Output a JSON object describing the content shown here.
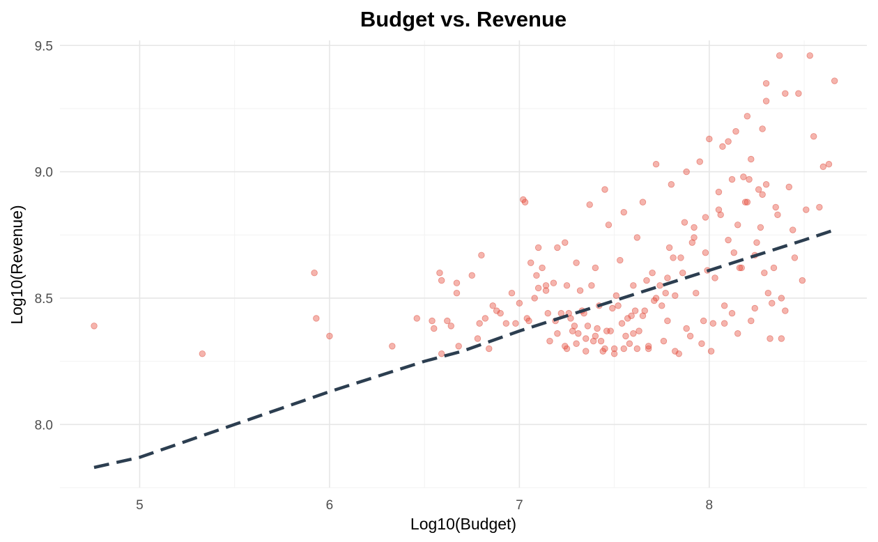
{
  "chart_data": {
    "type": "scatter",
    "title": "Budget vs. Revenue",
    "xlabel": "Log10(Budget)",
    "ylabel": "Log10(Revenue)",
    "xlim": [
      4.58,
      8.83
    ],
    "ylim": [
      7.75,
      9.52
    ],
    "x_ticks": [
      5,
      6,
      7,
      8
    ],
    "y_ticks": [
      8.0,
      8.5,
      9.0,
      9.5
    ],
    "x_tick_labels": [
      "5",
      "6",
      "7",
      "8"
    ],
    "y_tick_labels": [
      "8.0",
      "8.5",
      "9.0",
      "9.5"
    ],
    "grid": true,
    "legend": false,
    "point_color": "#e74c3c",
    "trend_color": "#2c3e50",
    "trend_line": {
      "style": "dashed",
      "x": [
        4.76,
        5.0,
        5.5,
        6.0,
        6.5,
        6.7,
        7.0,
        7.5,
        8.0,
        8.5,
        8.66
      ],
      "y": [
        7.83,
        7.87,
        8.0,
        8.13,
        8.25,
        8.29,
        8.37,
        8.49,
        8.61,
        8.73,
        8.77
      ]
    },
    "series": [
      {
        "x": [
          4.76,
          5.33,
          5.92,
          5.93,
          6.0,
          6.33,
          6.46,
          6.54,
          6.55,
          6.58,
          6.59,
          6.59,
          6.62,
          6.64,
          6.67,
          6.67,
          6.68,
          6.75,
          6.78,
          6.79,
          6.8,
          6.82,
          6.84,
          6.86,
          6.88,
          6.9,
          6.93,
          6.96,
          6.98,
          7.0,
          7.02,
          7.03,
          7.04,
          7.06,
          7.08,
          7.1,
          7.12,
          7.14,
          7.16,
          7.18,
          7.2,
          7.22,
          7.24,
          7.25,
          7.27,
          7.28,
          7.3,
          7.32,
          7.33,
          7.35,
          7.37,
          7.38,
          7.4,
          7.41,
          7.43,
          7.45,
          7.47,
          7.49,
          7.5,
          7.53,
          7.55,
          7.57,
          7.58,
          7.6,
          7.62,
          7.63,
          7.65,
          7.66,
          7.68,
          7.7,
          7.72,
          7.74,
          7.76,
          7.78,
          7.79,
          7.8,
          7.82,
          7.84,
          7.86,
          7.88,
          7.9,
          7.92,
          7.93,
          7.95,
          7.97,
          7.98,
          8.0,
          8.01,
          8.03,
          8.05,
          8.07,
          8.08,
          8.1,
          8.12,
          8.14,
          8.15,
          8.17,
          8.19,
          8.2,
          8.22,
          8.24,
          8.26,
          8.28,
          8.3,
          8.3,
          8.32,
          8.34,
          8.36,
          8.37,
          8.38,
          8.4,
          8.42,
          8.44,
          8.45,
          8.47,
          8.49,
          8.51,
          8.53,
          8.55,
          8.58,
          8.6,
          8.63,
          8.66,
          8.3,
          8.35,
          8.28,
          8.22,
          8.15,
          8.1,
          8.18,
          8.25,
          8.29,
          8.33,
          8.2,
          8.12,
          8.05,
          7.98,
          7.92,
          7.85,
          7.78,
          7.72,
          7.65,
          7.6,
          7.55,
          7.5,
          7.45,
          7.4,
          7.35,
          7.3,
          7.25,
          7.2,
          7.15,
          7.1,
          7.05,
          8.08,
          8.16,
          8.24,
          8.31,
          8.38,
          8.4,
          8.02,
          7.96,
          7.88,
          7.82,
          7.75,
          7.68,
          7.62,
          7.56,
          7.52,
          7.48,
          7.44,
          7.39,
          7.34,
          7.29,
          7.24,
          7.19,
          7.14,
          7.09,
          8.27,
          8.21,
          8.13,
          8.06,
          7.99,
          7.91,
          7.87,
          7.81,
          7.77,
          7.71,
          7.67,
          7.61,
          7.59,
          7.54,
          7.51,
          7.46,
          7.42,
          7.36,
          7.31,
          7.26
        ],
        "y": [
          8.39,
          8.28,
          8.6,
          8.42,
          8.35,
          8.31,
          8.42,
          8.41,
          8.38,
          8.6,
          8.57,
          8.28,
          8.41,
          8.39,
          8.56,
          8.52,
          8.31,
          8.59,
          8.34,
          8.4,
          8.67,
          8.42,
          8.3,
          8.47,
          8.45,
          8.44,
          8.4,
          8.52,
          8.4,
          8.48,
          8.89,
          8.88,
          8.42,
          8.64,
          8.5,
          8.7,
          8.62,
          8.53,
          8.33,
          8.56,
          8.7,
          8.44,
          8.72,
          8.55,
          8.42,
          8.37,
          8.64,
          8.53,
          8.45,
          8.34,
          8.87,
          8.55,
          8.62,
          8.38,
          8.33,
          8.93,
          8.79,
          8.46,
          8.3,
          8.65,
          8.84,
          8.42,
          8.32,
          8.55,
          8.74,
          8.37,
          8.88,
          8.45,
          8.3,
          8.6,
          9.03,
          8.55,
          8.33,
          8.41,
          8.7,
          8.95,
          8.51,
          8.28,
          8.6,
          9.0,
          8.35,
          8.78,
          8.52,
          9.04,
          8.41,
          8.68,
          9.13,
          8.29,
          8.58,
          8.85,
          9.1,
          8.47,
          8.73,
          8.97,
          9.16,
          8.36,
          8.62,
          8.88,
          9.22,
          8.41,
          8.67,
          8.93,
          9.17,
          8.95,
          9.35,
          8.34,
          8.62,
          8.83,
          9.46,
          8.5,
          9.31,
          8.94,
          8.77,
          8.66,
          9.31,
          8.57,
          8.85,
          9.46,
          9.14,
          8.86,
          9.02,
          9.03,
          9.36,
          9.28,
          8.86,
          8.91,
          9.05,
          8.79,
          9.12,
          8.98,
          8.72,
          8.6,
          8.48,
          8.88,
          8.44,
          8.92,
          8.82,
          8.74,
          8.66,
          8.58,
          8.5,
          8.43,
          8.36,
          8.3,
          8.28,
          8.3,
          8.35,
          8.29,
          8.32,
          8.3,
          8.36,
          8.44,
          8.54,
          8.41,
          8.4,
          8.62,
          8.46,
          8.52,
          8.34,
          8.45,
          8.4,
          8.32,
          8.38,
          8.29,
          8.47,
          8.31,
          8.3,
          8.35,
          8.47,
          8.37,
          8.29,
          8.33,
          8.44,
          8.39,
          8.31,
          8.41,
          8.55,
          8.59,
          8.78,
          8.97,
          8.68,
          8.83,
          8.61,
          8.72,
          8.8,
          8.66,
          8.52,
          8.49,
          8.57,
          8.45,
          8.43,
          8.4,
          8.51,
          8.37,
          8.47,
          8.39,
          8.36,
          8.44
        ]
      }
    ]
  }
}
